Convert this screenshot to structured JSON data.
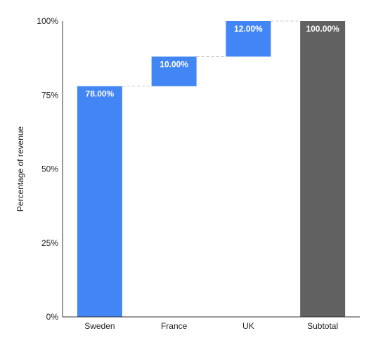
{
  "chart_data": {
    "type": "bar",
    "subtype": "waterfall",
    "title": "",
    "xlabel": "",
    "ylabel": "Percentage of revenue",
    "ylim": [
      0,
      100
    ],
    "y_ticks": [
      "0%",
      "25%",
      "50%",
      "75%",
      "100%"
    ],
    "y_tick_values": [
      0,
      25,
      50,
      75,
      100
    ],
    "categories": [
      "Sweden",
      "France",
      "UK",
      "Subtotal"
    ],
    "values": [
      78,
      10,
      12,
      100
    ],
    "value_labels": [
      "78.00%",
      "10.00%",
      "12.00%",
      "100.00%"
    ],
    "is_total": [
      false,
      false,
      false,
      true
    ],
    "colors": {
      "increase": "#4285f4",
      "total": "#616161",
      "connector": "#c8c8c8",
      "axis": "#333333"
    },
    "grid": false,
    "legend": "none"
  }
}
